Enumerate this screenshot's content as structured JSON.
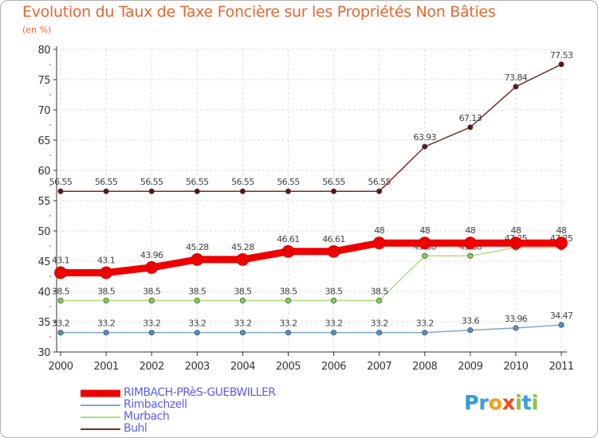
{
  "header": {
    "title": "Evolution du Taux de Taxe Foncière sur les Propriétés Non Bâties",
    "unit": "(en %)"
  },
  "logo": {
    "text": "Proxiti",
    "letters": [
      {
        "ch": "P",
        "color": "#2e9fd8"
      },
      {
        "ch": "r",
        "color": "#3aa0d8"
      },
      {
        "ch": "o",
        "color": "#f2a21b"
      },
      {
        "ch": "x",
        "color": "#e84e1b"
      },
      {
        "ch": "i",
        "color": "#8dc63f"
      },
      {
        "ch": "t",
        "color": "#3aa0d8"
      },
      {
        "ch": "i",
        "color": "#8dc63f"
      }
    ]
  },
  "chart_data": {
    "type": "line",
    "title": "Evolution du Taux de Taxe Foncière sur les Propriétés Non Bâties",
    "ylabel": "(en %)",
    "xlabel": "",
    "ylim": [
      30,
      80
    ],
    "yticks": [
      30,
      35,
      40,
      45,
      50,
      55,
      60,
      65,
      70,
      75,
      80
    ],
    "grid": true,
    "legend": "bottom-left",
    "categories": [
      "2000",
      "2001",
      "2002",
      "2003",
      "2004",
      "2005",
      "2006",
      "2007",
      "2008",
      "2009",
      "2010",
      "2011"
    ],
    "series": [
      {
        "name": "Buhl",
        "color": "#7a2a2a",
        "values": [
          56.55,
          56.55,
          56.55,
          56.55,
          56.55,
          56.55,
          56.55,
          56.55,
          63.93,
          67.13,
          73.84,
          77.53
        ],
        "labels": [
          "56.55",
          "56.55",
          "56.55",
          "56.55",
          "56.55",
          "56.55",
          "56.55",
          "56.55",
          "63.93",
          "67.13",
          "73.84",
          "77.53"
        ]
      },
      {
        "name": "Murbach",
        "color": "#a8e07a",
        "values": [
          38.5,
          38.5,
          38.5,
          38.5,
          38.5,
          38.5,
          38.5,
          38.5,
          45.88,
          45.88,
          47.25,
          47.25
        ],
        "labels": [
          "38.5",
          "38.5",
          "38.5",
          "38.5",
          "38.5",
          "38.5",
          "38.5",
          "38.5",
          "45.88",
          "45.88",
          "47.25",
          "47.25"
        ]
      },
      {
        "name": "Rimbachzell",
        "color": "#7aaad0",
        "values": [
          33.2,
          33.2,
          33.2,
          33.2,
          33.2,
          33.2,
          33.2,
          33.2,
          33.2,
          33.6,
          33.96,
          34.47
        ],
        "labels": [
          "33.2",
          "33.2",
          "33.2",
          "33.2",
          "33.2",
          "33.2",
          "33.2",
          "33.2",
          "33.2",
          "33.6",
          "33.96",
          "34.47"
        ]
      },
      {
        "name": "RIMBACH-PRèS-GUEBWILLER",
        "color": "#ee0000",
        "values": [
          43.1,
          43.1,
          43.96,
          45.28,
          45.28,
          46.61,
          46.61,
          48,
          48,
          48,
          48,
          48
        ],
        "labels": [
          "43.1",
          "43.1",
          "43.96",
          "45.28",
          "45.28",
          "46.61",
          "46.61",
          "48",
          "48",
          "48",
          "48",
          "48"
        ]
      }
    ],
    "legend_order": [
      "RIMBACH-PRèS-GUEBWILLER",
      "Rimbachzell",
      "Murbach",
      "Buhl"
    ]
  }
}
